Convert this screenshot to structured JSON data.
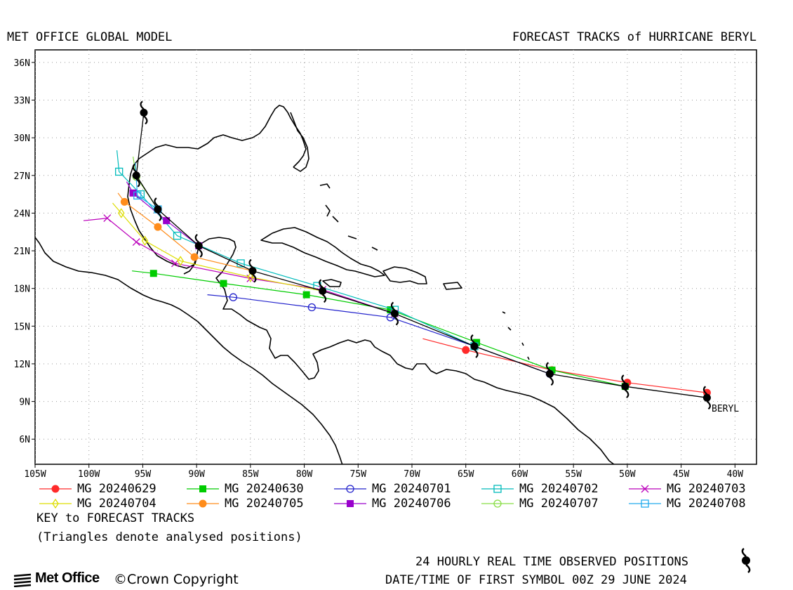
{
  "header": {
    "left_title": "MET OFFICE GLOBAL MODEL",
    "right_title": "FORECAST TRACKS of HURRICANE BERYL"
  },
  "map": {
    "lon_range": [
      -105,
      -38
    ],
    "lat_range": [
      4,
      37
    ],
    "lat_ticks": [
      {
        "value": 36,
        "label": "36N"
      },
      {
        "value": 33,
        "label": "33N"
      },
      {
        "value": 30,
        "label": "30N"
      },
      {
        "value": 27,
        "label": "27N"
      },
      {
        "value": 24,
        "label": "24N"
      },
      {
        "value": 21,
        "label": "21N"
      },
      {
        "value": 18,
        "label": "18N"
      },
      {
        "value": 15,
        "label": "15N"
      },
      {
        "value": 12,
        "label": "12N"
      },
      {
        "value": 9,
        "label": "9N"
      },
      {
        "value": 6,
        "label": "6N"
      }
    ],
    "lon_ticks": [
      {
        "value": -105,
        "label": "105W"
      },
      {
        "value": -100,
        "label": "100W"
      },
      {
        "value": -95,
        "label": "95W"
      },
      {
        "value": -90,
        "label": "90W"
      },
      {
        "value": -85,
        "label": "85W"
      },
      {
        "value": -80,
        "label": "80W"
      },
      {
        "value": -75,
        "label": "75W"
      },
      {
        "value": -70,
        "label": "70W"
      },
      {
        "value": -65,
        "label": "65W"
      },
      {
        "value": -60,
        "label": "60W"
      },
      {
        "value": -55,
        "label": "55W"
      },
      {
        "value": -50,
        "label": "50W"
      },
      {
        "value": -45,
        "label": "45W"
      },
      {
        "value": -40,
        "label": "40W"
      }
    ],
    "grid": true,
    "storm_label": "BERYL",
    "observed_track": [
      [
        -42.6,
        9.3
      ],
      [
        -50.2,
        10.2
      ],
      [
        -57.2,
        11.2
      ],
      [
        -64.2,
        13.4
      ],
      [
        -71.6,
        16.0
      ],
      [
        -78.3,
        17.8
      ],
      [
        -84.8,
        19.4
      ],
      [
        -89.8,
        21.4
      ],
      [
        -93.6,
        24.3
      ],
      [
        -95.6,
        27.0
      ],
      [
        -94.9,
        32.0
      ]
    ]
  },
  "forecast_tracks": [
    {
      "name": "MG 20240629",
      "color": "#ff2a2a",
      "marker": "filled-circle",
      "points": [
        [
          -42.6,
          9.7
        ],
        [
          -50.0,
          10.5
        ],
        [
          -57.0,
          11.5
        ],
        [
          -65.0,
          13.1
        ],
        [
          -69.0,
          14.0
        ]
      ]
    },
    {
      "name": "MG 20240630",
      "color": "#00cc00",
      "marker": "filled-square",
      "points": [
        [
          -50.2,
          10.2
        ],
        [
          -57.0,
          11.5
        ],
        [
          -64.0,
          13.7
        ],
        [
          -72.0,
          16.3
        ],
        [
          -79.8,
          17.5
        ],
        [
          -87.5,
          18.4
        ],
        [
          -94.0,
          19.2
        ],
        [
          -96.0,
          19.4
        ]
      ]
    },
    {
      "name": "MG 20240701",
      "color": "#2222cc",
      "marker": "open-circle",
      "points": [
        [
          -57.2,
          11.2
        ],
        [
          -64.2,
          13.4
        ],
        [
          -72.0,
          15.7
        ],
        [
          -79.3,
          16.5
        ],
        [
          -86.6,
          17.3
        ],
        [
          -89.0,
          17.5
        ]
      ]
    },
    {
      "name": "MG 20240702",
      "color": "#00bbbb",
      "marker": "open-square",
      "points": [
        [
          -64.2,
          13.4
        ],
        [
          -71.6,
          16.3
        ],
        [
          -78.8,
          18.2
        ],
        [
          -85.9,
          20.0
        ],
        [
          -91.8,
          22.2
        ],
        [
          -95.2,
          25.5
        ],
        [
          -97.2,
          27.3
        ],
        [
          -97.4,
          29.0
        ]
      ]
    },
    {
      "name": "MG 20240703",
      "color": "#bb00bb",
      "marker": "cross",
      "points": [
        [
          -71.6,
          16.0
        ],
        [
          -78.3,
          17.9
        ],
        [
          -85.0,
          18.8
        ],
        [
          -92.0,
          20.0
        ],
        [
          -95.6,
          21.7
        ],
        [
          -98.3,
          23.6
        ],
        [
          -100.5,
          23.4
        ]
      ]
    },
    {
      "name": "MG 20240704",
      "color": "#dddd00",
      "marker": "open-diamond",
      "points": [
        [
          -78.3,
          17.8
        ],
        [
          -85.0,
          18.9
        ],
        [
          -91.5,
          20.2
        ],
        [
          -94.8,
          21.8
        ],
        [
          -97.0,
          24.0
        ],
        [
          -97.8,
          24.8
        ]
      ]
    },
    {
      "name": "MG 20240705",
      "color": "#ff8c1a",
      "marker": "filled-circle",
      "points": [
        [
          -84.8,
          19.4
        ],
        [
          -90.2,
          20.5
        ],
        [
          -93.6,
          22.9
        ],
        [
          -96.7,
          24.9
        ],
        [
          -97.3,
          25.6
        ]
      ]
    },
    {
      "name": "MG 20240706",
      "color": "#9900cc",
      "marker": "filled-square",
      "points": [
        [
          -89.8,
          21.4
        ],
        [
          -92.8,
          23.4
        ],
        [
          -95.9,
          25.6
        ],
        [
          -96.5,
          26.5
        ]
      ]
    },
    {
      "name": "MG 20240707",
      "color": "#88dd44",
      "marker": "open-circle",
      "points": [
        [
          -93.6,
          24.3
        ],
        [
          -95.6,
          26.9
        ],
        [
          -95.9,
          28.5
        ]
      ]
    },
    {
      "name": "MG 20240708",
      "color": "#22aaee",
      "marker": "open-square",
      "points": [
        [
          -93.6,
          24.3
        ],
        [
          -95.5,
          25.4
        ],
        [
          -95.7,
          28.0
        ]
      ]
    }
  ],
  "legend_key": {
    "title": "KEY to FORECAST TRACKS",
    "note": "(Triangles denote analysed positions)"
  },
  "footer": {
    "observed_label": "24 HOURLY REAL TIME OBSERVED POSITIONS",
    "first_symbol": "DATE/TIME OF FIRST SYMBOL 00Z 29 JUNE 2024",
    "logo": "Met Office",
    "copyright": "Crown Copyright"
  }
}
